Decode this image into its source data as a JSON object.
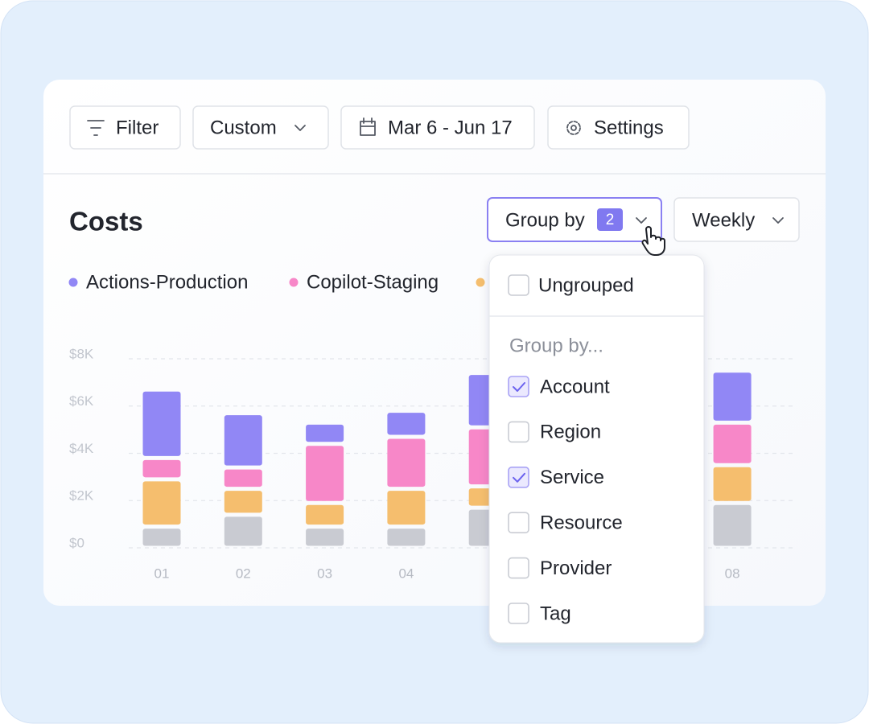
{
  "toolbar": {
    "filter": "Filter",
    "range": "Custom",
    "dates": "Mar 6 - Jun 17",
    "settings": "Settings"
  },
  "header": {
    "title": "Costs",
    "group_by": "Group by",
    "group_count": "2",
    "interval": "Weekly"
  },
  "chart_data": {
    "type": "stacked_bar",
    "categories": [
      "01",
      "02",
      "03",
      "04",
      null,
      null,
      null,
      "08"
    ],
    "series": [
      {
        "color": "#c9cbd2",
        "values": [
          0.9,
          1.4,
          0.9,
          0.9,
          1.7,
          null,
          null,
          1.9
        ]
      },
      {
        "color": "#f5be6e",
        "values": [
          2.0,
          1.1,
          1.0,
          1.6,
          0.9,
          null,
          null,
          1.6
        ]
      },
      {
        "name": "Copilot-Staging",
        "color": "#f787c8",
        "values": [
          0.9,
          0.9,
          2.5,
          2.2,
          2.5,
          null,
          null,
          1.8
        ]
      },
      {
        "name": "Actions-Production",
        "color": "#9187f5",
        "values": [
          2.9,
          2.3,
          0.9,
          1.1,
          2.3,
          null,
          null,
          2.2
        ]
      }
    ],
    "ylim": [
      0,
      8
    ],
    "yticks": [
      {
        "value": 0,
        "label": "$0"
      },
      {
        "value": 2,
        "label": "$2K"
      },
      {
        "value": 4,
        "label": "$4K"
      },
      {
        "value": 6,
        "label": "$6K"
      },
      {
        "value": 8,
        "label": "$8K"
      }
    ],
    "grid": true
  },
  "dropdown": {
    "ungrouped": {
      "label": "Ungrouped",
      "checked": false
    },
    "heading": "Group by...",
    "options": [
      {
        "label": "Account",
        "checked": true
      },
      {
        "label": "Region",
        "checked": false
      },
      {
        "label": "Service",
        "checked": true
      },
      {
        "label": "Resource",
        "checked": false
      },
      {
        "label": "Provider",
        "checked": false
      },
      {
        "label": "Tag",
        "checked": false
      }
    ]
  }
}
